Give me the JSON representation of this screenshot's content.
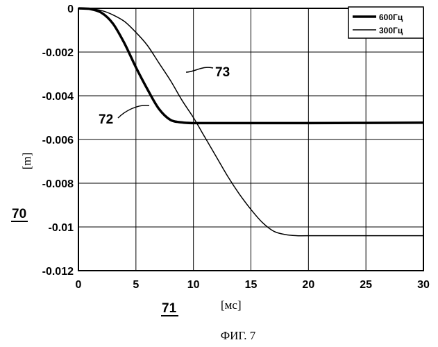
{
  "chart_data": {
    "type": "line",
    "xlim": [
      0,
      30
    ],
    "ylim": [
      -0.012,
      0
    ],
    "xticks": [
      0,
      5,
      10,
      15,
      20,
      25,
      30
    ],
    "xtick_labels": [
      "0",
      "5",
      "10",
      "15",
      "20",
      "25",
      "30"
    ],
    "yticks": [
      0,
      -0.002,
      -0.004,
      -0.006,
      -0.008,
      -0.01,
      -0.012
    ],
    "ytick_labels": [
      "0",
      "-0.002",
      "-0.004",
      "-0.006",
      "-0.008",
      "-0.01",
      "-0.012"
    ],
    "grid": true,
    "legend_position": "top-right",
    "xlabel": "[мс]",
    "ylabel": "[m]",
    "x_ref": "71",
    "y_ref": "70",
    "caption": "ФИГ. 7",
    "series": [
      {
        "name": "600Гц",
        "ref": "72",
        "style": "thick",
        "x": [
          0,
          1,
          2,
          3,
          4,
          5,
          6,
          7,
          8,
          9,
          10,
          12,
          15,
          20,
          25,
          30
        ],
        "y": [
          0,
          -3e-05,
          -0.0002,
          -0.0007,
          -0.0016,
          -0.0027,
          -0.0037,
          -0.0046,
          -0.0051,
          -0.00522,
          -0.00525,
          -0.00525,
          -0.00525,
          -0.00525,
          -0.00524,
          -0.00523
        ]
      },
      {
        "name": "300Гц",
        "ref": "73",
        "style": "thin",
        "x": [
          0,
          1,
          2,
          3,
          4,
          5,
          6,
          7,
          8,
          9,
          10,
          11,
          12,
          13,
          14,
          15,
          16,
          17,
          18,
          19,
          20,
          25,
          30
        ],
        "y": [
          0,
          -2e-05,
          -0.0001,
          -0.0003,
          -0.0006,
          -0.0011,
          -0.0017,
          -0.0025,
          -0.0033,
          -0.0042,
          -0.005,
          -0.0059,
          -0.0068,
          -0.0077,
          -0.0085,
          -0.0092,
          -0.0098,
          -0.0102,
          -0.01035,
          -0.0104,
          -0.0104,
          -0.0104,
          -0.0104
        ]
      }
    ]
  }
}
